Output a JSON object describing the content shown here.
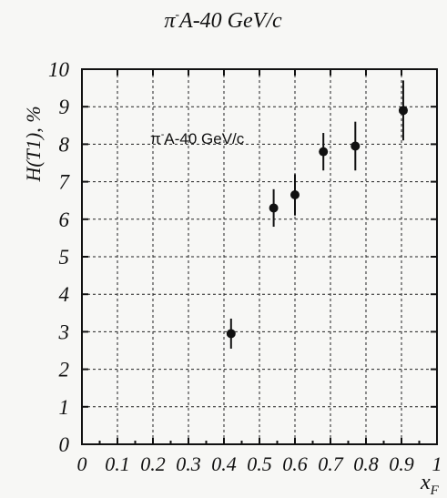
{
  "chart_data": {
    "type": "scatter",
    "title": {
      "pre": "π",
      "sup": "-",
      "post": "A-40 GeV/c"
    },
    "ylabel": "H(T1), %",
    "xlabel": {
      "main": "x",
      "sub": "F"
    },
    "annotation": {
      "pre": "π",
      "sup": "-",
      "post": "A-40 GeV/c"
    },
    "xlim": [
      0,
      1
    ],
    "ylim": [
      0,
      10
    ],
    "x_ticks": [
      "0",
      "0.1",
      "0.2",
      "0.3",
      "0.4",
      "0.5",
      "0.6",
      "0.7",
      "0.8",
      "0.9",
      "1"
    ],
    "y_ticks": [
      "0",
      "1",
      "2",
      "3",
      "4",
      "5",
      "6",
      "7",
      "8",
      "9",
      "10"
    ],
    "grid": true,
    "points": [
      {
        "x": 0.42,
        "y": 2.95,
        "err": 0.4
      },
      {
        "x": 0.54,
        "y": 6.3,
        "err": 0.5
      },
      {
        "x": 0.6,
        "y": 6.65,
        "err": 0.55
      },
      {
        "x": 0.68,
        "y": 7.8,
        "err": 0.5
      },
      {
        "x": 0.77,
        "y": 7.95,
        "err": 0.65
      },
      {
        "x": 0.905,
        "y": 8.9,
        "err": 0.8
      }
    ]
  }
}
